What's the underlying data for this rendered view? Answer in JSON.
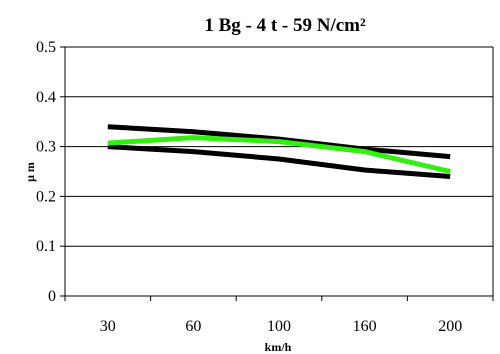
{
  "chart_data": {
    "type": "line",
    "title": "1 Bg - 4 t - 59 N/cm²",
    "xlabel": "km/h",
    "ylabel": "μ m",
    "categories": [
      "30",
      "60",
      "100",
      "160",
      "200"
    ],
    "ylim": [
      0,
      0.5
    ],
    "yticks": [
      "0",
      "0.1",
      "0.2",
      "0.3",
      "0.4",
      "0.5"
    ],
    "grid": "horizontal",
    "legend": "none",
    "series": [
      {
        "values": [
          0.34,
          0.33,
          0.315,
          0.295,
          0.28
        ],
        "color": "#000000"
      },
      {
        "values": [
          0.3,
          0.29,
          0.275,
          0.253,
          0.24
        ],
        "color": "#000000"
      },
      {
        "values": [
          0.307,
          0.318,
          0.31,
          0.29,
          0.25
        ],
        "color": "#33ee11"
      }
    ]
  }
}
